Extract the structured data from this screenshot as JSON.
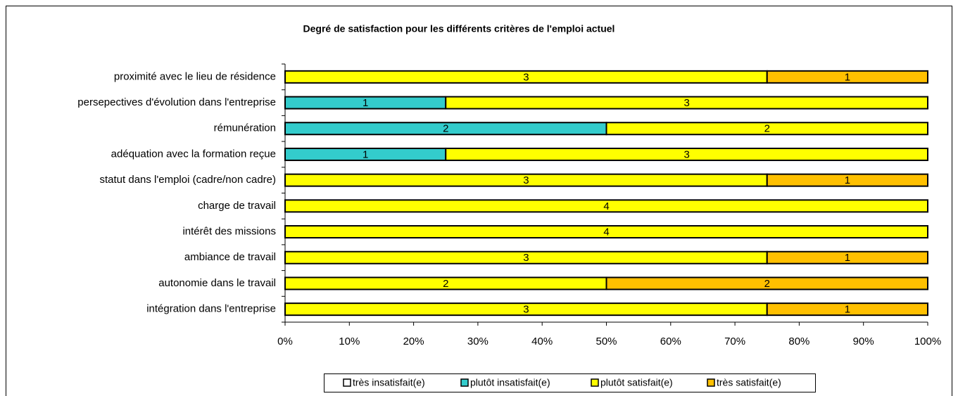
{
  "chart_data": {
    "type": "bar",
    "orientation": "horizontal",
    "stacking": "percent",
    "title": "Degré de satisfaction pour les différents critères de l'emploi actuel",
    "categories": [
      "proximité avec le lieu de résidence",
      "persepectives d'évolution dans l'entreprise",
      "rémunération",
      "adéquation avec la formation reçue",
      "statut dans l'emploi (cadre/non cadre)",
      "charge de travail",
      "intérêt des missions",
      "ambiance de travail",
      "autonomie dans le travail",
      "intégration dans l'entreprise"
    ],
    "series": [
      {
        "name": "très insatisfait(e)",
        "color": "#ffffff",
        "values": [
          0,
          0,
          0,
          0,
          0,
          0,
          0,
          0,
          0,
          0
        ]
      },
      {
        "name": "plutôt insatisfait(e)",
        "color": "#33cccc",
        "values": [
          0,
          1,
          2,
          1,
          0,
          0,
          0,
          0,
          0,
          0
        ]
      },
      {
        "name": "plutôt satisfait(e)",
        "color": "#ffff00",
        "values": [
          3,
          3,
          2,
          3,
          3,
          4,
          4,
          3,
          2,
          3
        ]
      },
      {
        "name": "très satisfait(e)",
        "color": "#ffc000",
        "values": [
          1,
          0,
          0,
          0,
          1,
          0,
          0,
          1,
          2,
          1
        ]
      }
    ],
    "xlim": [
      0,
      100
    ],
    "xticks": [
      {
        "value": 0,
        "label": "0%"
      },
      {
        "value": 10,
        "label": "10%"
      },
      {
        "value": 20,
        "label": "20%"
      },
      {
        "value": 30,
        "label": "30%"
      },
      {
        "value": 40,
        "label": "40%"
      },
      {
        "value": 50,
        "label": "50%"
      },
      {
        "value": 60,
        "label": "60%"
      },
      {
        "value": 70,
        "label": "70%"
      },
      {
        "value": 80,
        "label": "80%"
      },
      {
        "value": 90,
        "label": "90%"
      },
      {
        "value": 100,
        "label": "100%"
      }
    ],
    "legend": "bottom"
  }
}
